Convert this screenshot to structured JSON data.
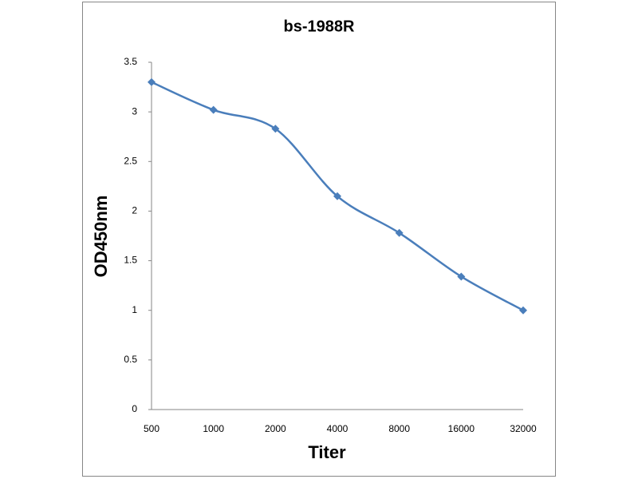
{
  "chart_data": {
    "type": "line",
    "title": "bs-1988R",
    "x_label": "Titer",
    "y_label": "OD450nm",
    "categories": [
      "500",
      "1000",
      "2000",
      "4000",
      "8000",
      "16000",
      "32000"
    ],
    "values": [
      3.3,
      3.02,
      2.83,
      2.15,
      1.78,
      1.34,
      1.0
    ],
    "color": "#4a7ebb",
    "smooth": true,
    "marker": "diamond",
    "ylim": [
      0,
      3.5
    ],
    "yticks": [
      0,
      0.5,
      1,
      1.5,
      2,
      2.5,
      3,
      3.5
    ],
    "grid": false
  }
}
